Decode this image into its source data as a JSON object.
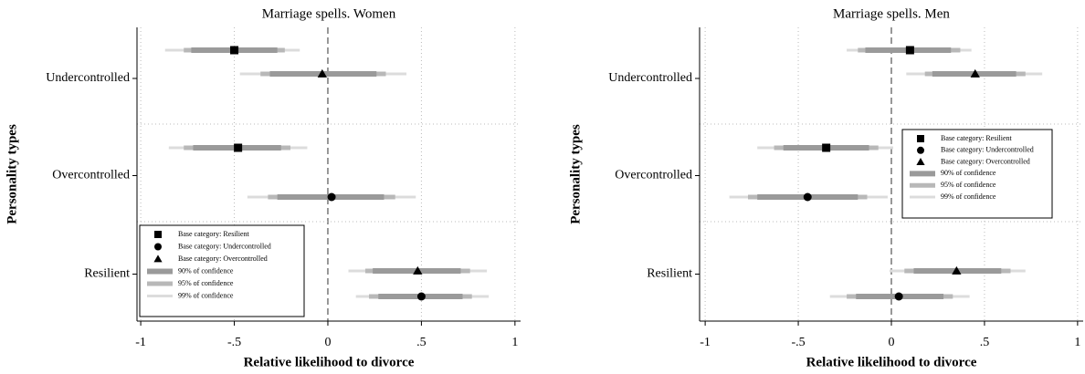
{
  "chart_data": [
    {
      "type": "coefplot",
      "title": "Marriage spells. Women",
      "xlabel": "Relative likelihood to divorce",
      "ylabel": "Personality types",
      "categories": [
        "Undercontrolled",
        "Overcontrolled",
        "Resilient"
      ],
      "xlim": [
        -1.02,
        1.03
      ],
      "xticks": [
        {
          "value": -1,
          "label": "-1"
        },
        {
          "value": -0.5,
          "label": "-.5"
        },
        0,
        {
          "value": 0.5,
          "label": ".5"
        },
        1
      ],
      "grid": true,
      "legend": "lower left",
      "ci_levels": [
        {
          "name": "90% of confidence",
          "color": "#9a9a9a"
        },
        {
          "name": "95% of confidence",
          "color": "#b8b8b8"
        },
        {
          "name": "99% of confidence",
          "color": "#dcdcdc"
        }
      ],
      "series": [
        {
          "name": "Base category: Resilient",
          "marker": "square",
          "color": "#000000",
          "values": [
            -0.5,
            -0.48,
            null
          ],
          "ci": [
            [
              [
                -0.73,
                -0.27
              ],
              [
                -0.77,
                -0.23
              ],
              [
                -0.87,
                -0.15
              ]
            ],
            [
              [
                -0.72,
                -0.25
              ],
              [
                -0.77,
                -0.2
              ],
              [
                -0.85,
                -0.11
              ]
            ],
            null
          ]
        },
        {
          "name": "Base category: Undercontrolled",
          "marker": "circle",
          "color": "#000000",
          "values": [
            null,
            0.02,
            0.5
          ],
          "ci": [
            null,
            [
              [
                -0.27,
                0.3
              ],
              [
                -0.32,
                0.36
              ],
              [
                -0.43,
                0.47
              ]
            ],
            [
              [
                0.27,
                0.72
              ],
              [
                0.22,
                0.77
              ],
              [
                0.15,
                0.86
              ]
            ]
          ]
        },
        {
          "name": "Base category: Overcontrolled",
          "marker": "triangle",
          "color": "#000000",
          "values": [
            -0.03,
            null,
            0.48
          ],
          "ci": [
            [
              [
                -0.31,
                0.26
              ],
              [
                -0.36,
                0.31
              ],
              [
                -0.47,
                0.42
              ]
            ],
            null,
            [
              [
                0.24,
                0.71
              ],
              [
                0.2,
                0.76
              ],
              [
                0.11,
                0.85
              ]
            ]
          ]
        }
      ]
    },
    {
      "type": "coefplot",
      "title": "Marriage spells. Men",
      "xlabel": "Relative likelihood to divorce",
      "ylabel": "Personality types",
      "categories": [
        "Undercontrolled",
        "Overcontrolled",
        "Resilient"
      ],
      "xlim": [
        -1.03,
        1.03
      ],
      "xticks": [
        {
          "value": -1,
          "label": "-1"
        },
        {
          "value": -0.5,
          "label": "-.5"
        },
        0,
        {
          "value": 0.5,
          "label": ".5"
        },
        1
      ],
      "grid": true,
      "legend": "center right",
      "ci_levels": [
        {
          "name": "90% of confidence",
          "color": "#9a9a9a"
        },
        {
          "name": "95% of confidence",
          "color": "#b8b8b8"
        },
        {
          "name": "99% of confidence",
          "color": "#dcdcdc"
        }
      ],
      "series": [
        {
          "name": "Base category: Resilient",
          "marker": "square",
          "color": "#000000",
          "values": [
            0.1,
            -0.35,
            null
          ],
          "ci": [
            [
              [
                -0.14,
                0.32
              ],
              [
                -0.18,
                0.37
              ],
              [
                -0.24,
                0.43
              ]
            ],
            [
              [
                -0.58,
                -0.12
              ],
              [
                -0.63,
                -0.07
              ],
              [
                -0.72,
                0.01
              ]
            ],
            null
          ]
        },
        {
          "name": "Base category: Undercontrolled",
          "marker": "circle",
          "color": "#000000",
          "values": [
            null,
            -0.45,
            0.04
          ],
          "ci": [
            null,
            [
              [
                -0.72,
                -0.18
              ],
              [
                -0.77,
                -0.13
              ],
              [
                -0.87,
                -0.02
              ]
            ],
            [
              [
                -0.19,
                0.28
              ],
              [
                -0.24,
                0.33
              ],
              [
                -0.33,
                0.42
              ]
            ]
          ]
        },
        {
          "name": "Base category: Overcontrolled",
          "marker": "triangle",
          "color": "#000000",
          "values": [
            0.45,
            null,
            0.35
          ],
          "ci": [
            [
              [
                0.22,
                0.67
              ],
              [
                0.18,
                0.72
              ],
              [
                0.08,
                0.81
              ]
            ],
            null,
            [
              [
                0.12,
                0.59
              ],
              [
                0.07,
                0.64
              ],
              [
                -0.01,
                0.72
              ]
            ]
          ]
        }
      ]
    }
  ]
}
